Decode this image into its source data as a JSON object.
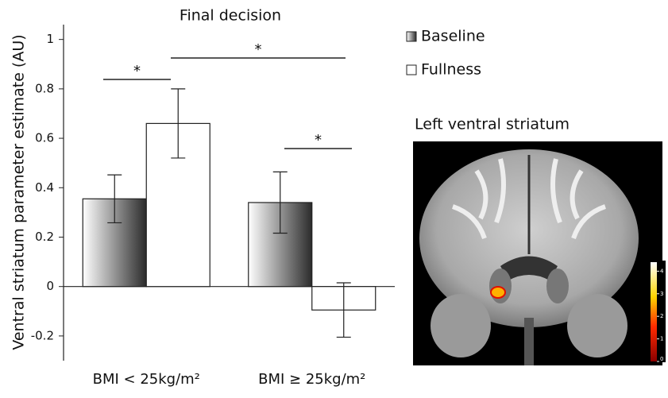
{
  "chart_data": {
    "type": "bar",
    "title": "Final decision",
    "ylabel": "Ventral striatum parameter estimate (AU)",
    "categories": [
      "BMI < 25kg/m²",
      "BMI ≥ 25kg/m²"
    ],
    "series": [
      {
        "name": "Baseline",
        "color": "#2b2b2b",
        "values": [
          0.355,
          0.34
        ],
        "errors": [
          0.097,
          0.124
        ]
      },
      {
        "name": "Fullness",
        "color": "#ffffff",
        "values": [
          0.66,
          -0.095
        ],
        "errors": [
          0.14,
          0.11
        ]
      }
    ],
    "ylim": [
      -0.3,
      1.06
    ],
    "yticks": [
      -0.2,
      0,
      0.2,
      0.4,
      0.6,
      0.8,
      1
    ],
    "annotations": [
      "*",
      "*",
      "*"
    ]
  },
  "inset": {
    "title": "Left ventral striatum",
    "colorbar_lim": [
      0,
      4.4
    ],
    "colorbar_ticks": [
      0,
      1,
      2,
      3,
      4
    ]
  }
}
